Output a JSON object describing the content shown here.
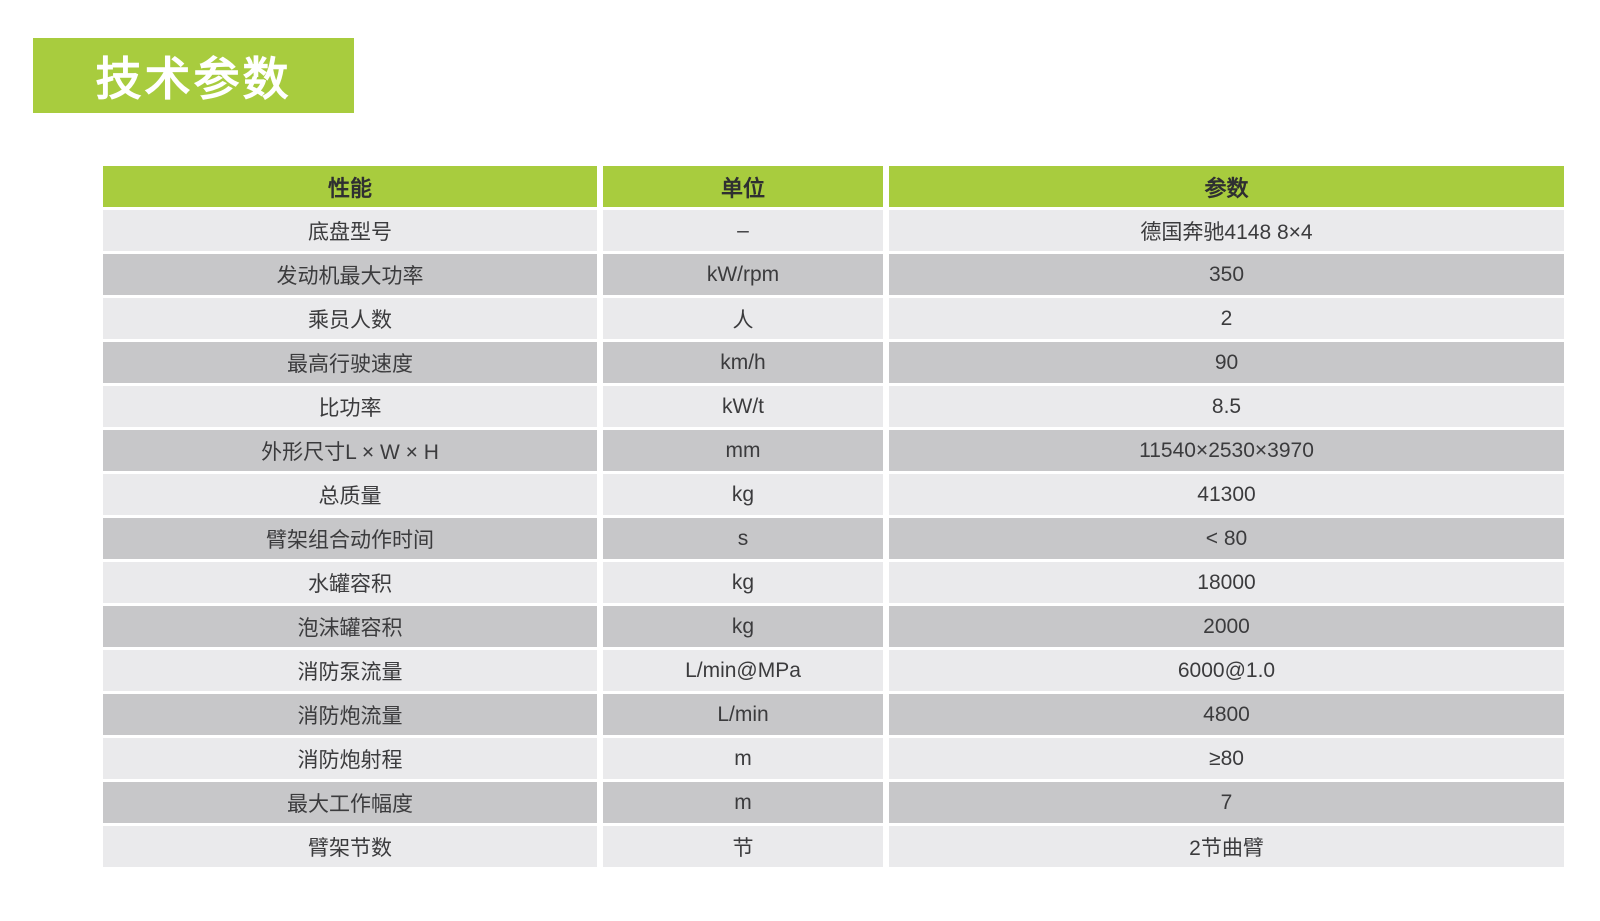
{
  "page": {
    "title": "技术参数"
  },
  "colors": {
    "accent_green": "#a8cc3e",
    "row_light": "#eaeaec",
    "row_dark": "#c7c7c9",
    "title_text": "#ffffff",
    "cell_text": "#3b3b3d"
  },
  "table": {
    "headers": [
      "性能",
      "单位",
      "参数"
    ],
    "rows": [
      [
        "底盘型号",
        "–",
        "德国奔驰4148 8×4"
      ],
      [
        "发动机最大功率",
        "kW/rpm",
        "350"
      ],
      [
        "乘员人数",
        "人",
        "2"
      ],
      [
        "最高行驶速度",
        "km/h",
        "90"
      ],
      [
        "比功率",
        "kW/t",
        "8.5"
      ],
      [
        "外形尺寸L × W × H",
        "mm",
        "11540×2530×3970"
      ],
      [
        "总质量",
        "kg",
        "41300"
      ],
      [
        "臂架组合动作时间",
        "s",
        "< 80"
      ],
      [
        "水罐容积",
        "kg",
        "18000"
      ],
      [
        "泡沫罐容积",
        "kg",
        "2000"
      ],
      [
        "消防泵流量",
        "L/min@MPa",
        "6000@1.0"
      ],
      [
        "消防炮流量",
        "L/min",
        "4800"
      ],
      [
        "消防炮射程",
        "m",
        "≥80"
      ],
      [
        "最大工作幅度",
        "m",
        "7"
      ],
      [
        "臂架节数",
        "节",
        "2节曲臂"
      ]
    ]
  }
}
